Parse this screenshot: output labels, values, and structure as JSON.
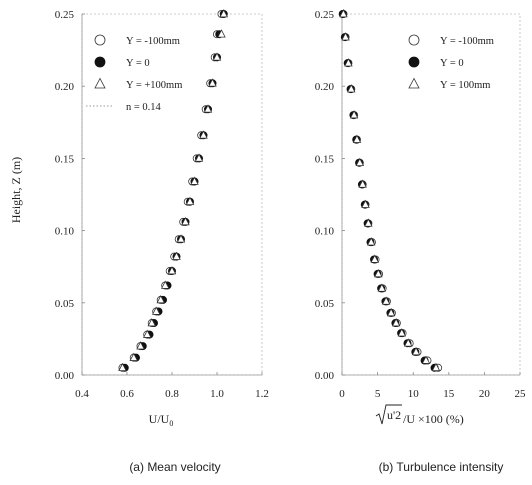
{
  "shared": {
    "ylabel": "Height, Z (m)",
    "y_ticks": [
      "0.00",
      "0.05",
      "0.10",
      "0.15",
      "0.20",
      "0.25"
    ],
    "ylim": [
      0,
      0.25
    ]
  },
  "chart_data": [
    {
      "type": "scatter",
      "caption": "(a) Mean velocity",
      "xlabel_main": "U/U",
      "xlabel_sub": "0",
      "ylabel": "Height, Z (m)",
      "xlim": [
        0.4,
        1.2
      ],
      "ylim": [
        0,
        0.25
      ],
      "x_ticks": [
        "0.4",
        "0.6",
        "0.8",
        "1.0",
        "1.2"
      ],
      "y_ticks": [
        "0.00",
        "0.05",
        "0.10",
        "0.15",
        "0.20",
        "0.25"
      ],
      "grid": false,
      "legend_position": "top-left",
      "series": [
        {
          "name": "Y = -100mm",
          "marker": "open-circle",
          "x": [
            0.58,
            0.63,
            0.66,
            0.69,
            0.71,
            0.73,
            0.75,
            0.77,
            0.79,
            0.81,
            0.83,
            0.85,
            0.87,
            0.89,
            0.91,
            0.93,
            0.95,
            0.97,
            0.99,
            1.0,
            1.02
          ],
          "y": [
            0.005,
            0.012,
            0.02,
            0.028,
            0.036,
            0.044,
            0.052,
            0.062,
            0.072,
            0.082,
            0.094,
            0.106,
            0.12,
            0.134,
            0.15,
            0.166,
            0.184,
            0.202,
            0.22,
            0.236,
            0.25
          ]
        },
        {
          "name": "Y = 0",
          "marker": "filled-circle",
          "x": [
            0.59,
            0.64,
            0.67,
            0.7,
            0.72,
            0.74,
            0.76,
            0.78,
            0.8,
            0.82,
            0.84,
            0.86,
            0.88,
            0.9,
            0.92,
            0.94,
            0.96,
            0.98,
            1.0,
            1.01,
            1.03
          ],
          "y": [
            0.005,
            0.012,
            0.02,
            0.028,
            0.036,
            0.044,
            0.052,
            0.062,
            0.072,
            0.082,
            0.094,
            0.106,
            0.12,
            0.134,
            0.15,
            0.166,
            0.184,
            0.202,
            0.22,
            0.236,
            0.25
          ]
        },
        {
          "name": "Y = +100mm",
          "marker": "open-triangle",
          "x": [
            0.58,
            0.63,
            0.66,
            0.69,
            0.71,
            0.73,
            0.75,
            0.77,
            0.8,
            0.82,
            0.84,
            0.86,
            0.88,
            0.9,
            0.92,
            0.94,
            0.96,
            0.98,
            1.0,
            1.02,
            1.03
          ],
          "y": [
            0.005,
            0.012,
            0.02,
            0.028,
            0.036,
            0.044,
            0.052,
            0.062,
            0.072,
            0.082,
            0.094,
            0.106,
            0.12,
            0.134,
            0.15,
            0.166,
            0.184,
            0.202,
            0.22,
            0.236,
            0.25
          ]
        },
        {
          "name": "n = 0.14",
          "marker": "dotted-line",
          "x": [],
          "y": []
        }
      ]
    },
    {
      "type": "scatter",
      "caption": "(b) Turbulence intensity",
      "xlabel_main": "/U ×100  (%)",
      "xlabel_sqrt": "u'2",
      "xlim": [
        0,
        25
      ],
      "ylim": [
        0,
        0.25
      ],
      "x_ticks": [
        "0",
        "5",
        "10",
        "15",
        "20",
        "25"
      ],
      "y_ticks": [
        "0.00",
        "0.05",
        "0.10",
        "0.15",
        "0.20",
        "0.25"
      ],
      "grid": false,
      "legend_position": "top-right",
      "series": [
        {
          "name": "Y = -100mm",
          "marker": "open-circle",
          "x": [
            13.5,
            12.0,
            10.6,
            9.5,
            8.5,
            7.7,
            7.0,
            6.3,
            5.7,
            5.2,
            4.7,
            4.2,
            3.7,
            3.3,
            2.9,
            2.5,
            2.1,
            1.7,
            1.3,
            0.9,
            0.5,
            0.2
          ],
          "y": [
            0.005,
            0.01,
            0.016,
            0.022,
            0.029,
            0.036,
            0.043,
            0.051,
            0.06,
            0.07,
            0.08,
            0.092,
            0.105,
            0.118,
            0.132,
            0.147,
            0.163,
            0.18,
            0.198,
            0.216,
            0.234,
            0.25
          ]
        },
        {
          "name": "Y = 0",
          "marker": "filled-circle",
          "x": [
            13.0,
            11.6,
            10.3,
            9.2,
            8.3,
            7.5,
            6.8,
            6.1,
            5.5,
            5.0,
            4.5,
            4.0,
            3.6,
            3.2,
            2.8,
            2.4,
            2.0,
            1.6,
            1.2,
            0.8,
            0.4,
            0.1
          ],
          "y": [
            0.005,
            0.01,
            0.016,
            0.022,
            0.029,
            0.036,
            0.043,
            0.051,
            0.06,
            0.07,
            0.08,
            0.092,
            0.105,
            0.118,
            0.132,
            0.147,
            0.163,
            0.18,
            0.198,
            0.216,
            0.234,
            0.25
          ]
        },
        {
          "name": "Y = 100mm",
          "marker": "open-triangle",
          "x": [
            13.2,
            11.8,
            10.4,
            9.3,
            8.4,
            7.6,
            6.9,
            6.2,
            5.6,
            5.1,
            4.6,
            4.1,
            3.7,
            3.3,
            2.9,
            2.5,
            2.1,
            1.7,
            1.3,
            0.9,
            0.5,
            0.2
          ],
          "y": [
            0.005,
            0.01,
            0.016,
            0.022,
            0.029,
            0.036,
            0.043,
            0.051,
            0.06,
            0.07,
            0.08,
            0.092,
            0.105,
            0.118,
            0.132,
            0.147,
            0.163,
            0.18,
            0.198,
            0.216,
            0.234,
            0.25
          ]
        }
      ]
    }
  ]
}
